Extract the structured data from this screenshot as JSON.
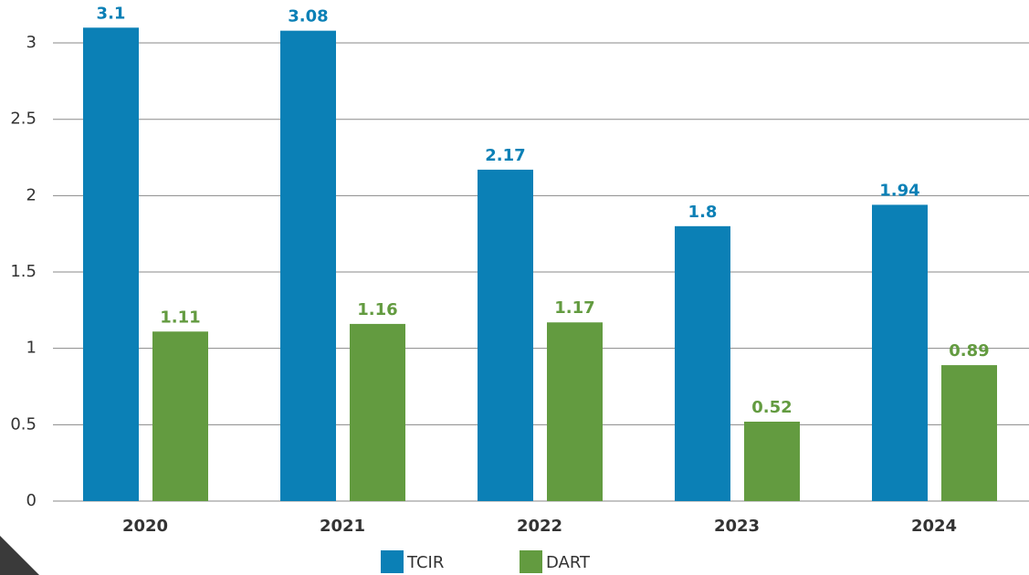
{
  "chart_data": {
    "type": "bar",
    "categories": [
      "2020",
      "2021",
      "2022",
      "2023",
      "2024"
    ],
    "series": [
      {
        "name": "TCIR",
        "color": "#0b80b6",
        "values": [
          3.1,
          3.08,
          2.17,
          1.8,
          1.94
        ]
      },
      {
        "name": "DART",
        "color": "#639b40",
        "values": [
          1.11,
          1.16,
          1.17,
          0.52,
          0.89
        ]
      }
    ],
    "ylim": [
      0,
      3.25
    ],
    "yticks": [
      0,
      0.5,
      1,
      1.5,
      2,
      2.5,
      3
    ],
    "grid": true,
    "legend": "bottom"
  }
}
